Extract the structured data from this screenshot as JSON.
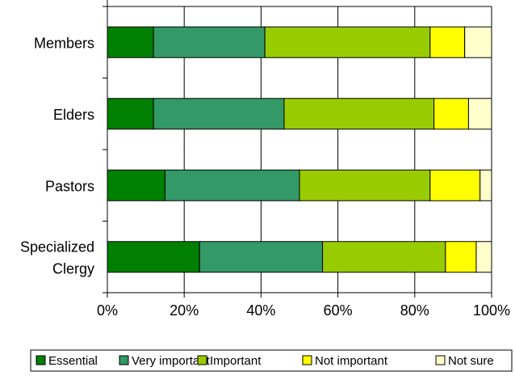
{
  "chart_data": {
    "type": "bar",
    "orientation": "horizontal",
    "stacking": "percent",
    "categories": [
      [
        "Members"
      ],
      [
        "Elders"
      ],
      [
        "Pastors"
      ],
      [
        "Specialized",
        "Clergy"
      ]
    ],
    "x_ticks": [
      "0%",
      "20%",
      "40%",
      "60%",
      "80%",
      "100%"
    ],
    "xlim": [
      0,
      100
    ],
    "grid": "vertical",
    "legend_position": "bottom",
    "series": [
      {
        "name": "Essential",
        "color": "#008000",
        "values": [
          12,
          12,
          15,
          24
        ]
      },
      {
        "name": "Very important",
        "color": "#339966",
        "values": [
          29,
          34,
          35,
          32
        ]
      },
      {
        "name": "Important",
        "color": "#99CC00",
        "values": [
          43,
          39,
          34,
          32
        ]
      },
      {
        "name": "Not important",
        "color": "#FFFF00",
        "values": [
          9,
          9,
          13,
          8
        ]
      },
      {
        "name": "Not sure",
        "color": "#FFFFCC",
        "values": [
          7,
          6,
          3,
          4
        ]
      }
    ]
  }
}
